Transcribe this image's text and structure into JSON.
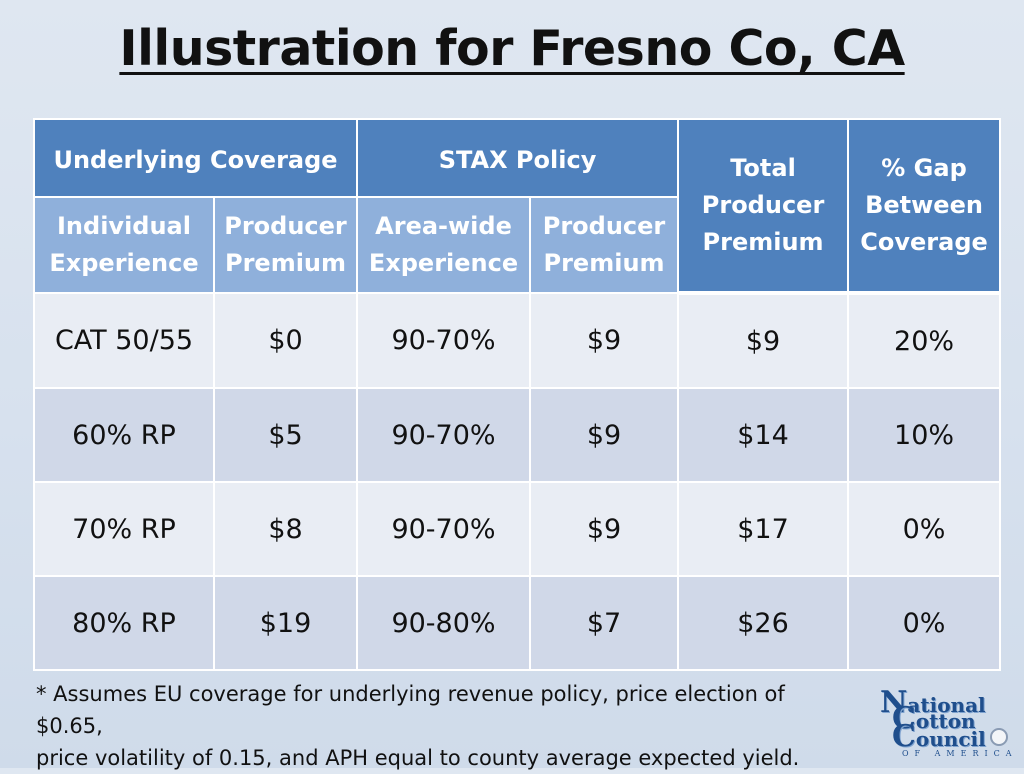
{
  "slide": {
    "title": "Illustration for Fresno Co, CA"
  },
  "table": {
    "groups": {
      "underlying": "Underlying Coverage",
      "stax": "STAX Policy",
      "total_line1": "Total",
      "total_line2": "Producer",
      "total_line3": "Premium",
      "gap_line1": "% Gap",
      "gap_line2": "Between",
      "gap_line3": "Coverage"
    },
    "subheaders": {
      "individual_line1": "Individual",
      "individual_line2": "Experience",
      "producer1_line1": "Producer",
      "producer1_line2": "Premium",
      "areawide_line1": "Area-wide",
      "areawide_line2": "Experience",
      "producer2_line1": "Producer",
      "producer2_line2": "Premium"
    },
    "rows": [
      [
        "CAT 50/55",
        "$0",
        "90-70%",
        "$9",
        "$9",
        "20%"
      ],
      [
        "60% RP",
        "$5",
        "90-70%",
        "$9",
        "$14",
        "10%"
      ],
      [
        "70% RP",
        "$8",
        "90-70%",
        "$9",
        "$17",
        "0%"
      ],
      [
        "80% RP",
        "$19",
        "90-80%",
        "$7",
        "$26",
        "0%"
      ]
    ]
  },
  "footnote": {
    "line1": "* Assumes EU coverage for underlying revenue policy, price election of $0.65,",
    "line2": "price volatility of 0.15, and APH equal to county average expected yield."
  },
  "logo": {
    "n_cap": "N",
    "n_rest": "ational",
    "c_cap": "C",
    "c_rest": "otton",
    "c2_cap": "C",
    "c2_rest": "ouncil",
    "subline": "OF AMERICA"
  },
  "colors": {
    "header_dark": "#4f81bd",
    "header_light": "#8fb0db",
    "row_light": "#e9edf4",
    "row_dark": "#d0d8e8"
  }
}
